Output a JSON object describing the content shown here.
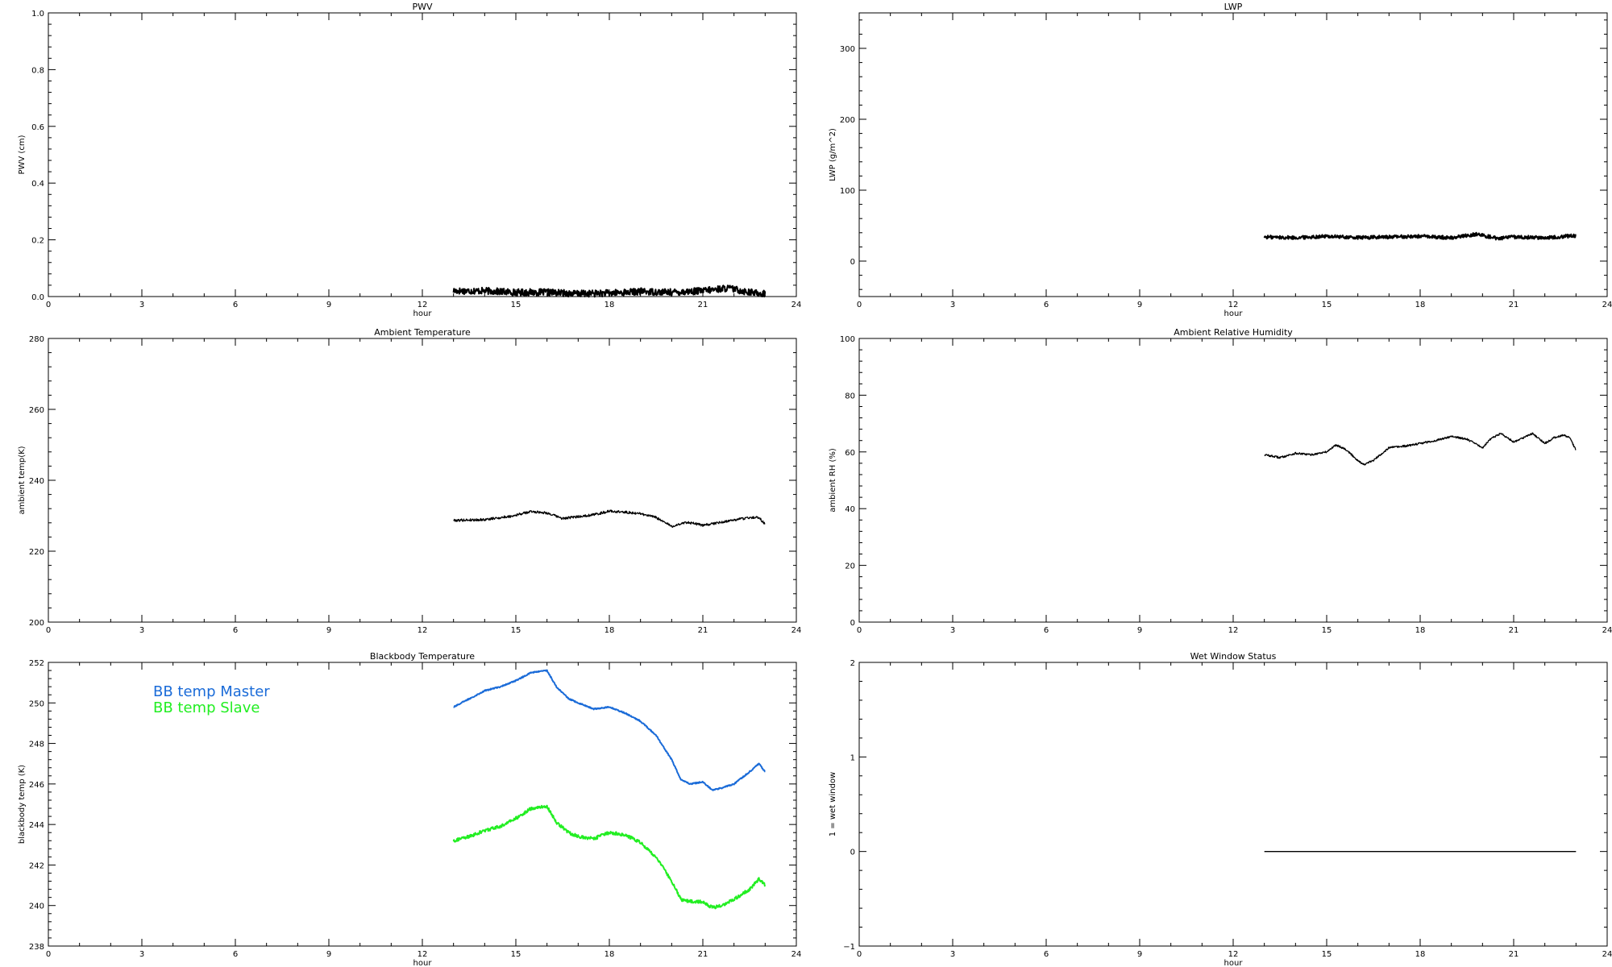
{
  "chart_data": [
    {
      "id": "pwv",
      "type": "line",
      "title": "PWV",
      "xlabel": "hour",
      "ylabel": "PWV (cm)",
      "xlim": [
        0,
        24
      ],
      "ylim": [
        0,
        1.0
      ],
      "xticks": [
        0,
        3,
        6,
        9,
        12,
        15,
        18,
        21,
        24
      ],
      "yticks": [
        0.0,
        0.2,
        0.4,
        0.6,
        0.8,
        1.0
      ],
      "ytick_labels": [
        "0.0",
        "0.2",
        "0.4",
        "0.6",
        "0.8",
        "1.0"
      ],
      "series": [
        {
          "color": "#000000",
          "noise": 0.012,
          "x": [
            13.0,
            14.0,
            15.0,
            16.0,
            17.0,
            18.0,
            19.0,
            20.0,
            21.0,
            21.8,
            22.5,
            23.0
          ],
          "y": [
            0.02,
            0.02,
            0.015,
            0.015,
            0.01,
            0.012,
            0.018,
            0.015,
            0.02,
            0.03,
            0.015,
            0.01
          ]
        }
      ]
    },
    {
      "id": "lwp",
      "type": "line",
      "title": "LWP",
      "xlabel": "hour",
      "ylabel": "LWP (g/m^2)",
      "xlim": [
        0,
        24
      ],
      "ylim": [
        -50,
        350
      ],
      "xticks": [
        0,
        3,
        6,
        9,
        12,
        15,
        18,
        21,
        24
      ],
      "yticks": [
        0,
        100,
        200,
        300
      ],
      "ytick_labels": [
        "0",
        "100",
        "200",
        "300"
      ],
      "series": [
        {
          "color": "#000000",
          "noise": 2.5,
          "x": [
            13.0,
            14.0,
            15.0,
            16.0,
            17.0,
            18.0,
            19.0,
            19.8,
            20.5,
            21.0,
            22.0,
            23.0
          ],
          "y": [
            34,
            33,
            35,
            33,
            34,
            35,
            33,
            38,
            32,
            34,
            33,
            36
          ]
        }
      ]
    },
    {
      "id": "ambient-temp",
      "type": "line",
      "title": "Ambient Temperature",
      "xlabel": "",
      "ylabel": "ambient temp(K)",
      "xlim": [
        0,
        24
      ],
      "ylim": [
        200,
        280
      ],
      "xticks": [
        0,
        3,
        6,
        9,
        12,
        15,
        18,
        21,
        24
      ],
      "yticks": [
        200,
        220,
        240,
        260,
        280
      ],
      "ytick_labels": [
        "200",
        "220",
        "240",
        "260",
        "280"
      ],
      "series": [
        {
          "color": "#000000",
          "noise": 0.35,
          "x": [
            13.0,
            14.0,
            14.8,
            15.5,
            16.0,
            16.5,
            17.5,
            18.0,
            18.5,
            19.0,
            19.5,
            20.0,
            20.5,
            21.0,
            21.5,
            22.0,
            22.5,
            22.8,
            23.0
          ],
          "y": [
            228.7,
            228.9,
            229.8,
            231.2,
            230.8,
            229.2,
            230.3,
            231.3,
            231.0,
            230.6,
            229.5,
            227.0,
            228.2,
            227.3,
            228.0,
            228.8,
            229.5,
            229.5,
            227.5
          ]
        }
      ]
    },
    {
      "id": "ambient-rh",
      "type": "line",
      "title": "Ambient Relative Humidity",
      "xlabel": "",
      "ylabel": "ambient RH (%)",
      "xlim": [
        0,
        24
      ],
      "ylim": [
        0,
        100
      ],
      "xticks": [
        0,
        3,
        6,
        9,
        12,
        15,
        18,
        21,
        24
      ],
      "yticks": [
        0,
        20,
        40,
        60,
        80,
        100
      ],
      "ytick_labels": [
        "0",
        "20",
        "40",
        "60",
        "80",
        "100"
      ],
      "series": [
        {
          "color": "#000000",
          "noise": 0.35,
          "x": [
            13.0,
            13.5,
            14.0,
            14.5,
            15.0,
            15.3,
            15.6,
            16.0,
            16.2,
            16.5,
            17.0,
            17.5,
            18.0,
            18.5,
            19.0,
            19.5,
            20.0,
            20.3,
            20.6,
            21.0,
            21.3,
            21.6,
            22.0,
            22.3,
            22.6,
            22.8,
            23.0
          ],
          "y": [
            59,
            58,
            59.5,
            59,
            60,
            62.5,
            61,
            57,
            55.5,
            57,
            61.5,
            62,
            63,
            64,
            65.5,
            64.5,
            61.5,
            65,
            66.5,
            63.5,
            65,
            66.5,
            63,
            65,
            66,
            65,
            60.5
          ]
        }
      ]
    },
    {
      "id": "blackbody-temp",
      "type": "line",
      "title": "Blackbody Temperature",
      "xlabel": "hour",
      "ylabel": "blackbody temp (K)",
      "xlim": [
        0,
        24
      ],
      "ylim": [
        238,
        252
      ],
      "xticks": [
        0,
        3,
        6,
        9,
        12,
        15,
        18,
        21,
        24
      ],
      "yticks": [
        238,
        240,
        242,
        244,
        246,
        248,
        250,
        252
      ],
      "ytick_labels": [
        "238",
        "240",
        "242",
        "244",
        "246",
        "248",
        "250",
        "252"
      ],
      "series": [
        {
          "name": "BB temp Master",
          "color": "#1a6bd8",
          "noise": 0.03,
          "x": [
            13.0,
            13.5,
            14.0,
            14.5,
            15.0,
            15.5,
            16.0,
            16.3,
            16.7,
            17.0,
            17.5,
            18.0,
            18.5,
            19.0,
            19.5,
            20.0,
            20.3,
            20.6,
            21.0,
            21.3,
            21.6,
            22.0,
            22.5,
            22.8,
            23.0
          ],
          "y": [
            249.8,
            250.2,
            250.6,
            250.8,
            251.1,
            251.5,
            251.6,
            250.8,
            250.2,
            250.0,
            249.7,
            249.8,
            249.5,
            249.1,
            248.4,
            247.2,
            246.2,
            246.0,
            246.1,
            245.7,
            245.8,
            246.0,
            246.6,
            247.0,
            246.6
          ]
        },
        {
          "name": "BB temp Slave",
          "color": "#22ee22",
          "noise": 0.08,
          "x": [
            13.0,
            13.5,
            14.0,
            14.5,
            15.0,
            15.5,
            16.0,
            16.3,
            16.7,
            17.0,
            17.5,
            18.0,
            18.5,
            19.0,
            19.5,
            20.0,
            20.3,
            20.6,
            21.0,
            21.3,
            21.6,
            22.0,
            22.5,
            22.8,
            23.0
          ],
          "y": [
            243.2,
            243.4,
            243.7,
            243.9,
            244.3,
            244.8,
            244.9,
            244.1,
            243.6,
            243.4,
            243.3,
            243.6,
            243.5,
            243.1,
            242.4,
            241.2,
            240.3,
            240.2,
            240.2,
            239.9,
            240.0,
            240.3,
            240.8,
            241.3,
            241.0
          ]
        }
      ],
      "legend": [
        "BB temp Master",
        "BB temp Slave"
      ],
      "legend_position": "top-left"
    },
    {
      "id": "wet-window",
      "type": "line",
      "title": "Wet Window Status",
      "xlabel": "hour",
      "ylabel": "1 = wet window",
      "xlim": [
        0,
        24
      ],
      "ylim": [
        -1,
        2
      ],
      "xticks": [
        0,
        3,
        6,
        9,
        12,
        15,
        18,
        21,
        24
      ],
      "yticks": [
        -1,
        0,
        1,
        2
      ],
      "ytick_labels": [
        "−1",
        "0",
        "1",
        "2"
      ],
      "series": [
        {
          "color": "#000000",
          "noise": 0,
          "x": [
            13.0,
            23.0
          ],
          "y": [
            0,
            0
          ]
        }
      ]
    }
  ]
}
